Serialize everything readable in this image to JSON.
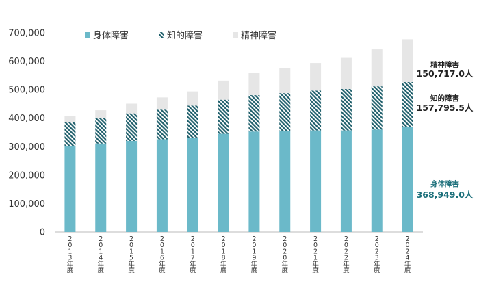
{
  "chart_data": {
    "type": "bar",
    "stacked": true,
    "categories": [
      "2013年度",
      "2014年度",
      "2015年度",
      "2016年度",
      "2017年度",
      "2018年度",
      "2019年度",
      "2020年度",
      "2021年度",
      "2022年度",
      "2023年度",
      "2024年度"
    ],
    "series": [
      {
        "name": "身体障害",
        "values": [
          302000,
          311000,
          320000,
          326000,
          330000,
          345000,
          353000,
          355000,
          357000,
          357000,
          360000,
          368949.0
        ]
      },
      {
        "name": "知的障害",
        "values": [
          85000,
          90000,
          97000,
          104000,
          114000,
          120000,
          128000,
          133000,
          140000,
          146000,
          152000,
          157795.5
        ]
      },
      {
        "name": "精神障害",
        "values": [
          20000,
          27000,
          34000,
          43000,
          50000,
          67000,
          78000,
          87000,
          97000,
          109000,
          130000,
          150717.0
        ]
      }
    ],
    "ylim": [
      0,
      700000
    ],
    "yticks": [
      "0",
      "100,000",
      "200,000",
      "300,000",
      "400,000",
      "500,000",
      "600,000",
      "700,000"
    ],
    "legend_position": "top",
    "colors": {
      "身体障害": "#6bb9c9",
      "知的障害": "#1f5f6b",
      "精神障害": "#e6e6e6"
    },
    "annotations": [
      {
        "series": "精神障害",
        "label": "精神障害",
        "value": "150,717.0人",
        "color": "#222222"
      },
      {
        "series": "知的障害",
        "label": "知的障害",
        "value": "157,795.5人",
        "color": "#222222"
      },
      {
        "series": "身体障害",
        "label": "身体障害",
        "value": "368,949.0人",
        "color": "#1b6f7a"
      }
    ]
  }
}
